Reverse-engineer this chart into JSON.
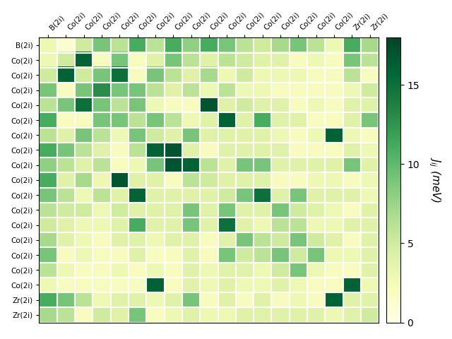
{
  "labels": [
    "B(2i)",
    "Co(2i)",
    "Co(2i)",
    "Co(2i)",
    "Co(2i)",
    "Co(2i)",
    "Co(2i)",
    "Co(2i)",
    "Co(2i)",
    "Co(2i)",
    "Co(2i)",
    "Co(2i)",
    "Co(2i)",
    "Co(2i)",
    "Co(2i)",
    "Co(2i)",
    "Co(2i)",
    "Zr(2i)",
    "Zr(2i)"
  ],
  "colorbar_label": "$J_{ij}$ (meV)",
  "vmin": 0,
  "vmax": 18,
  "matrix": [
    [
      3,
      1,
      5,
      9,
      6,
      11,
      6,
      11,
      8,
      11,
      9,
      6,
      5,
      7,
      9,
      6,
      3,
      11,
      7
    ],
    [
      3,
      5,
      16,
      2,
      9,
      2,
      4,
      9,
      6,
      4,
      6,
      5,
      4,
      4,
      2,
      3,
      2,
      9,
      6
    ],
    [
      5,
      16,
      5,
      9,
      15,
      2,
      9,
      6,
      4,
      7,
      3,
      5,
      3,
      3,
      3,
      2,
      2,
      6,
      2
    ],
    [
      9,
      2,
      9,
      13,
      9,
      9,
      6,
      4,
      6,
      3,
      6,
      3,
      3,
      2,
      2,
      2,
      2,
      3,
      5
    ],
    [
      6,
      9,
      15,
      9,
      6,
      9,
      3,
      2,
      2,
      17,
      4,
      5,
      4,
      4,
      2,
      3,
      2,
      4,
      4
    ],
    [
      11,
      2,
      2,
      9,
      9,
      6,
      9,
      6,
      3,
      4,
      16,
      4,
      11,
      4,
      4,
      2,
      2,
      4,
      9
    ],
    [
      6,
      4,
      9,
      6,
      3,
      9,
      5,
      4,
      9,
      4,
      4,
      4,
      4,
      3,
      2,
      3,
      16,
      3,
      2
    ],
    [
      11,
      9,
      6,
      4,
      2,
      6,
      16,
      17,
      4,
      2,
      4,
      4,
      4,
      4,
      2,
      2,
      2,
      4,
      3
    ],
    [
      8,
      6,
      4,
      6,
      2,
      3,
      9,
      17,
      16,
      6,
      4,
      9,
      9,
      4,
      4,
      4,
      4,
      9,
      4
    ],
    [
      11,
      4,
      7,
      3,
      17,
      4,
      4,
      2,
      6,
      5,
      4,
      4,
      4,
      2,
      2,
      3,
      3,
      2,
      3
    ],
    [
      9,
      6,
      3,
      6,
      4,
      16,
      4,
      4,
      4,
      4,
      5,
      9,
      15,
      4,
      9,
      4,
      4,
      4,
      3
    ],
    [
      6,
      5,
      5,
      3,
      5,
      4,
      4,
      4,
      9,
      4,
      9,
      4,
      4,
      9,
      5,
      4,
      3,
      2,
      4
    ],
    [
      5,
      4,
      3,
      3,
      4,
      11,
      4,
      4,
      9,
      4,
      15,
      4,
      3,
      6,
      6,
      3,
      3,
      4,
      4
    ],
    [
      7,
      4,
      3,
      2,
      4,
      4,
      3,
      4,
      4,
      2,
      4,
      9,
      6,
      5,
      9,
      5,
      4,
      2,
      4
    ],
    [
      9,
      2,
      3,
      2,
      2,
      4,
      2,
      2,
      4,
      2,
      9,
      5,
      6,
      9,
      5,
      9,
      3,
      3,
      4
    ],
    [
      6,
      3,
      2,
      2,
      3,
      2,
      3,
      2,
      4,
      3,
      4,
      4,
      3,
      5,
      9,
      3,
      2,
      2,
      4
    ],
    [
      3,
      2,
      2,
      2,
      2,
      2,
      16,
      2,
      4,
      3,
      4,
      3,
      3,
      4,
      3,
      2,
      2,
      16,
      3
    ],
    [
      11,
      9,
      6,
      3,
      4,
      4,
      3,
      4,
      9,
      2,
      4,
      2,
      4,
      2,
      3,
      2,
      16,
      4,
      4
    ],
    [
      7,
      6,
      2,
      5,
      4,
      9,
      2,
      3,
      4,
      3,
      3,
      4,
      4,
      4,
      4,
      4,
      3,
      4,
      5
    ]
  ],
  "cmap": "YlGn",
  "figsize": [
    6.4,
    4.8
  ],
  "dpi": 100,
  "tick_fontsize": 7.5,
  "cbar_tick_vals": [
    0,
    5,
    10,
    15
  ],
  "cbar_label_fontsize": 11,
  "cbar_labelpad": 8
}
